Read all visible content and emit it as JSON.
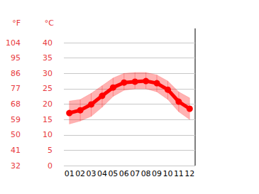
{
  "chart_data": {
    "type": "line",
    "categories": [
      "01",
      "02",
      "03",
      "04",
      "05",
      "06",
      "07",
      "08",
      "09",
      "10",
      "11",
      "12"
    ],
    "series": [
      {
        "color": "#ff0000",
        "marker": "circle",
        "axis": "y",
        "values": [
          17.1,
          18.0,
          19.9,
          22.7,
          25.4,
          27.0,
          27.3,
          27.5,
          26.8,
          24.7,
          20.8,
          18.5
        ],
        "low": [
          13.5,
          14.5,
          16.0,
          19.0,
          22.5,
          24.5,
          25.0,
          25.0,
          24.0,
          21.5,
          17.5,
          15.0
        ],
        "high": [
          21.0,
          21.5,
          23.5,
          26.0,
          28.5,
          30.0,
          30.3,
          30.3,
          29.5,
          27.5,
          24.0,
          22.0
        ]
      }
    ],
    "y_label": "°C",
    "ylim": [
      0,
      40
    ],
    "yticks": [
      0,
      5,
      10,
      15,
      20,
      25,
      30,
      35,
      40
    ],
    "y2_label": "°F",
    "y2lim": [
      32,
      104
    ],
    "y2ticks": [
      32,
      41,
      50,
      59,
      68,
      77,
      86,
      95,
      104
    ],
    "grid": true
  }
}
